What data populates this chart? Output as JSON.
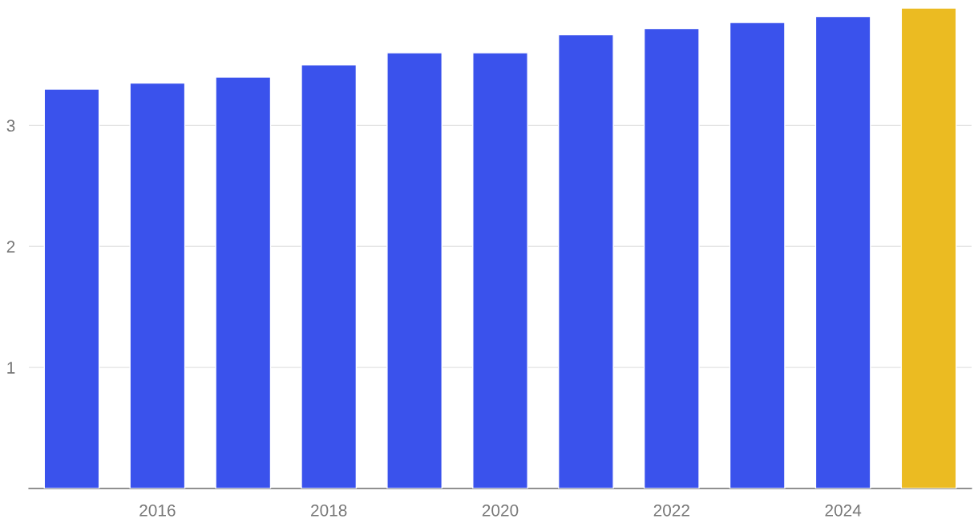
{
  "chart_data": {
    "type": "bar",
    "x": [
      2015,
      2016,
      2017,
      2018,
      2019,
      2020,
      2021,
      2022,
      2023,
      2024,
      2025
    ],
    "values": [
      3.3,
      3.35,
      3.4,
      3.5,
      3.6,
      3.6,
      3.75,
      3.8,
      3.85,
      3.9,
      3.97
    ],
    "colors": [
      "#3a52ec",
      "#3a52ec",
      "#3a52ec",
      "#3a52ec",
      "#3a52ec",
      "#3a52ec",
      "#3a52ec",
      "#3a52ec",
      "#3a52ec",
      "#3a52ec",
      "#ebbb22"
    ],
    "xlim": [
      2014.5,
      2025.5
    ],
    "xticks": [
      2016,
      2018,
      2020,
      2022,
      2024
    ],
    "ylim": [
      0,
      3.97
    ],
    "yticks": [
      1,
      2,
      3
    ],
    "grid": "y"
  }
}
